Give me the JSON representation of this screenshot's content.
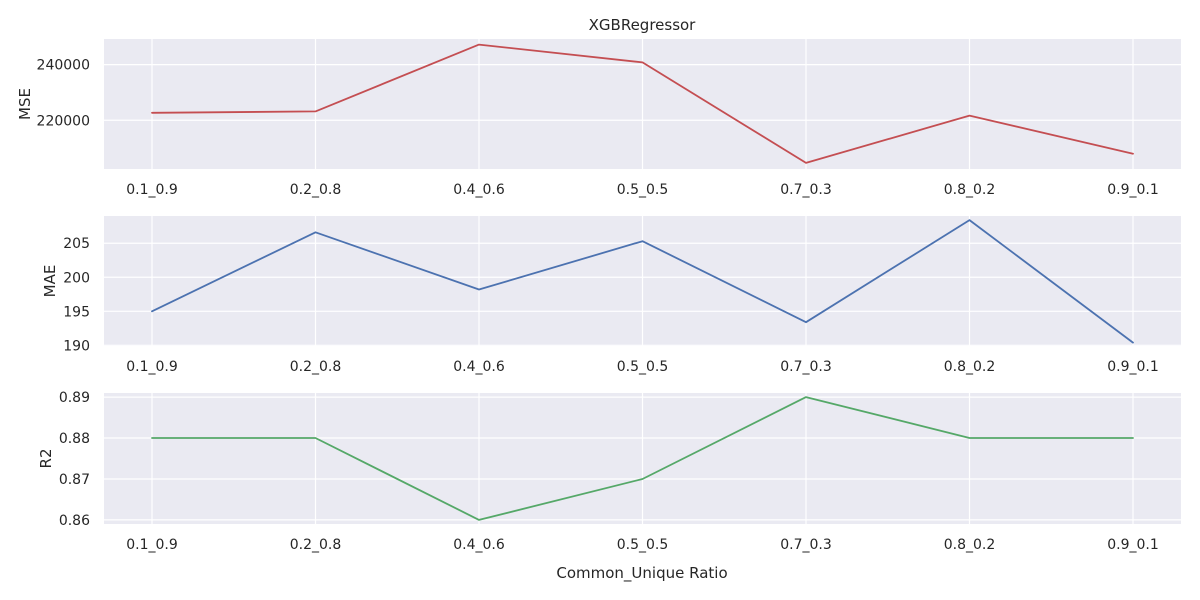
{
  "figure": {
    "title": "XGBRegressor",
    "xlabel": "Common_Unique Ratio"
  },
  "chart_data": [
    {
      "type": "line",
      "title": "XGBRegressor",
      "xlabel": "",
      "ylabel": "MSE",
      "categories": [
        "0.1_0.9",
        "0.2_0.8",
        "0.4_0.6",
        "0.5_0.5",
        "0.7_0.3",
        "0.8_0.2",
        "0.9_0.1"
      ],
      "series": [
        {
          "values": [
            222700,
            223200,
            247200,
            240800,
            204700,
            221700,
            208000
          ],
          "color": "#c44e52"
        }
      ],
      "yticks": [
        220000,
        240000
      ],
      "ylim": [
        202500,
        249200
      ],
      "grid": true
    },
    {
      "type": "line",
      "xlabel": "",
      "ylabel": "MAE",
      "categories": [
        "0.1_0.9",
        "0.2_0.8",
        "0.4_0.6",
        "0.5_0.5",
        "0.7_0.3",
        "0.8_0.2",
        "0.9_0.1"
      ],
      "series": [
        {
          "values": [
            195.0,
            206.6,
            198.2,
            205.3,
            193.4,
            208.4,
            190.4
          ],
          "color": "#4c72b0"
        }
      ],
      "yticks": [
        190,
        195,
        200,
        205
      ],
      "ylim": [
        189.9,
        209.0
      ],
      "grid": true
    },
    {
      "type": "line",
      "xlabel": "Common_Unique Ratio",
      "ylabel": "R2",
      "categories": [
        "0.1_0.9",
        "0.2_0.8",
        "0.4_0.6",
        "0.5_0.5",
        "0.7_0.3",
        "0.8_0.2",
        "0.9_0.1"
      ],
      "series": [
        {
          "values": [
            0.88,
            0.88,
            0.86,
            0.87,
            0.89,
            0.88,
            0.88
          ],
          "color": "#55a868"
        }
      ],
      "yticks": [
        0.86,
        0.87,
        0.88,
        0.89
      ],
      "ylim": [
        0.859,
        0.891
      ],
      "grid": true
    }
  ]
}
